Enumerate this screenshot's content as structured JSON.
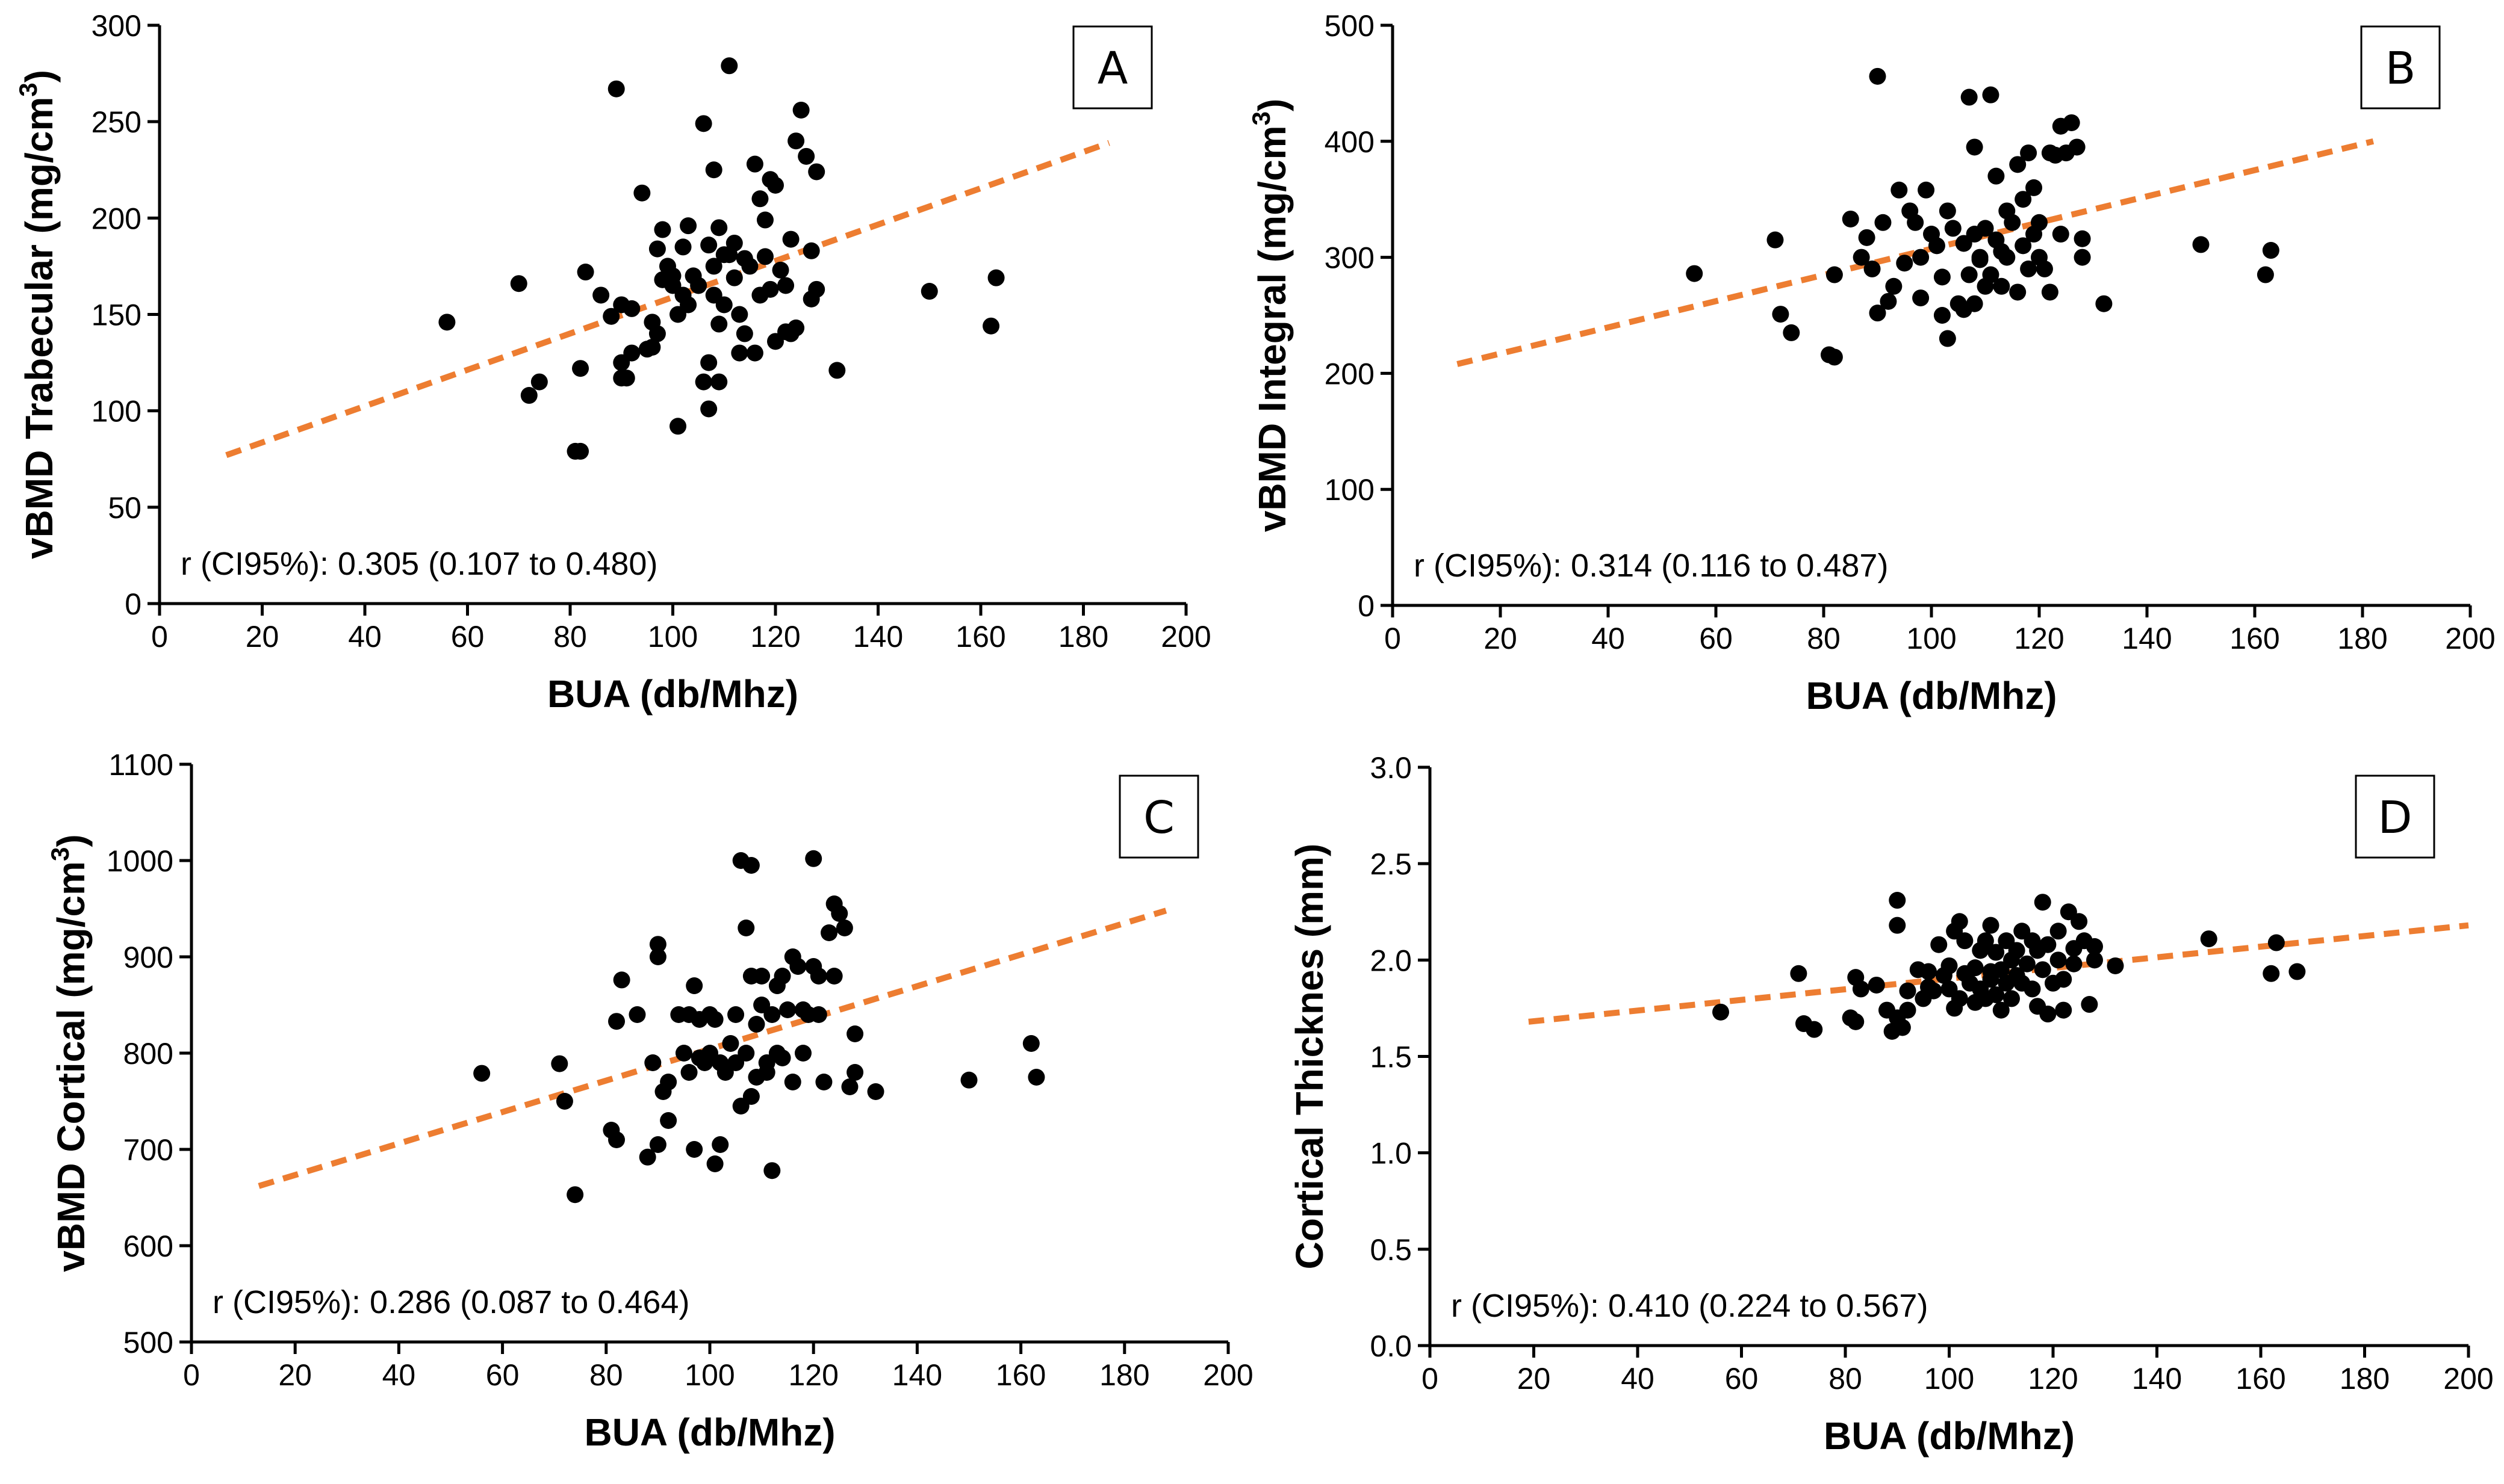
{
  "chart_data": [
    {
      "type": "scatter",
      "panel": "A",
      "xlabel": "BUA (db/Mhz)",
      "ylabel": "vBMD Trabecular (mg/cm",
      "ylabel_sup": "3",
      "ylabel_close": ")",
      "annotation": "r (CI95%): 0.305 (0.107 to 0.480)",
      "xlim": [
        0,
        200
      ],
      "ylim": [
        0,
        300
      ],
      "xticks": [
        "0",
        "20",
        "40",
        "60",
        "80",
        "100",
        "120",
        "140",
        "160",
        "180",
        "200"
      ],
      "yticks": [
        "0",
        "50",
        "100",
        "150",
        "200",
        "250",
        "300"
      ],
      "trendline": {
        "x": [
          13,
          185
        ],
        "y": [
          77,
          239
        ]
      },
      "x": [
        56,
        70,
        72,
        74,
        81,
        82,
        82,
        83,
        86,
        88,
        89,
        90,
        90,
        90,
        91,
        92,
        92,
        94,
        95,
        96,
        96,
        97,
        97,
        98,
        98,
        99,
        100,
        100,
        101,
        101,
        102,
        102,
        103,
        103,
        104,
        105,
        106,
        106,
        107,
        107,
        107,
        108,
        108,
        108,
        109,
        109,
        109,
        110,
        110,
        111,
        111,
        112,
        112,
        113,
        113,
        114,
        114,
        115,
        116,
        116,
        117,
        117,
        118,
        118,
        119,
        119,
        120,
        120,
        121,
        122,
        122,
        123,
        123,
        124,
        124,
        125,
        126,
        127,
        127,
        128,
        128,
        132,
        150,
        162,
        163
      ],
      "y": [
        146,
        166,
        108,
        115,
        79,
        79,
        122,
        172,
        160,
        149,
        267,
        117,
        155,
        125,
        117,
        130,
        153,
        213,
        132,
        146,
        133,
        140,
        184,
        168,
        194,
        175,
        170,
        165,
        92,
        150,
        185,
        160,
        155,
        196,
        170,
        165,
        115,
        249,
        186,
        101,
        125,
        225,
        175,
        160,
        115,
        195,
        145,
        155,
        181,
        181,
        279,
        169,
        187,
        150,
        130,
        179,
        140,
        175,
        130,
        228,
        160,
        210,
        180,
        199,
        220,
        163,
        136,
        217,
        173,
        165,
        141,
        140,
        189,
        143,
        240,
        256,
        232,
        158,
        183,
        163,
        224,
        121,
        162,
        144,
        169
      ]
    },
    {
      "type": "scatter",
      "panel": "B",
      "xlabel": "BUA (db/Mhz)",
      "ylabel": "vBMD Integral (mg/cm",
      "ylabel_sup": "3",
      "ylabel_close": ")",
      "annotation": "r (CI95%): 0.314 (0.116 to 0.487)",
      "xlim": [
        0,
        200
      ],
      "ylim": [
        0,
        500
      ],
      "xticks": [
        "0",
        "20",
        "40",
        "60",
        "80",
        "100",
        "120",
        "140",
        "160",
        "180",
        "200"
      ],
      "yticks": [
        "0",
        "100",
        "200",
        "300",
        "400",
        "500"
      ],
      "trendline": {
        "x": [
          12,
          182
        ],
        "y": [
          208,
          400
        ]
      },
      "x": [
        56,
        71,
        72,
        74,
        81,
        82,
        82,
        85,
        87,
        88,
        89,
        90,
        90,
        91,
        92,
        93,
        94,
        95,
        96,
        97,
        98,
        98,
        99,
        100,
        101,
        102,
        102,
        103,
        103,
        104,
        105,
        106,
        106,
        107,
        107,
        108,
        108,
        108,
        109,
        109,
        110,
        110,
        111,
        111,
        112,
        112,
        113,
        113,
        114,
        114,
        115,
        116,
        116,
        117,
        117,
        118,
        118,
        119,
        119,
        120,
        120,
        121,
        122,
        122,
        123,
        124,
        124,
        125,
        126,
        127,
        128,
        128,
        132,
        150,
        162,
        163
      ],
      "y": [
        286,
        315,
        251,
        235,
        216,
        214,
        285,
        333,
        300,
        317,
        290,
        252,
        456,
        330,
        262,
        275,
        358,
        295,
        340,
        330,
        300,
        265,
        358,
        320,
        310,
        283,
        250,
        340,
        230,
        325,
        260,
        312,
        255,
        438,
        285,
        395,
        320,
        260,
        298,
        300,
        325,
        275,
        285,
        440,
        370,
        315,
        275,
        305,
        340,
        300,
        330,
        270,
        380,
        310,
        350,
        290,
        390,
        320,
        360,
        300,
        330,
        290,
        270,
        390,
        388,
        320,
        413,
        390,
        416,
        395,
        300,
        316,
        260,
        311,
        285,
        306
      ]
    },
    {
      "type": "scatter",
      "panel": "C",
      "xlabel": "BUA (db/Mhz)",
      "ylabel": "vBMD Cortical (mg/cm",
      "ylabel_sup": "3",
      "ylabel_close": ")",
      "annotation": "r (CI95%): 0.286 (0.087 to 0.464)",
      "xlim": [
        0,
        200
      ],
      "ylim": [
        500,
        1100
      ],
      "xticks": [
        "0",
        "20",
        "40",
        "60",
        "80",
        "100",
        "120",
        "140",
        "160",
        "180",
        "200"
      ],
      "yticks": [
        "500",
        "600",
        "700",
        "800",
        "900",
        "1000",
        "1100"
      ],
      "trendline": {
        "x": [
          13,
          188
        ],
        "y": [
          662,
          948
        ]
      },
      "x": [
        56,
        71,
        72,
        74,
        81,
        82,
        82,
        83,
        86,
        88,
        89,
        90,
        90,
        90,
        91,
        92,
        92,
        94,
        95,
        96,
        96,
        97,
        97,
        98,
        98,
        99,
        100,
        100,
        101,
        101,
        102,
        102,
        103,
        104,
        105,
        105,
        106,
        106,
        107,
        107,
        108,
        108,
        108,
        109,
        109,
        110,
        110,
        111,
        111,
        112,
        112,
        113,
        113,
        114,
        114,
        115,
        116,
        116,
        117,
        118,
        118,
        119,
        120,
        120,
        121,
        121,
        122,
        123,
        124,
        124,
        125,
        126,
        127,
        128,
        128,
        132,
        150,
        162,
        163
      ],
      "y": [
        779,
        789,
        750,
        653,
        720,
        710,
        833,
        876,
        840,
        692,
        790,
        705,
        913,
        900,
        760,
        770,
        730,
        840,
        800,
        840,
        780,
        700,
        870,
        795,
        835,
        790,
        840,
        800,
        685,
        835,
        705,
        790,
        780,
        810,
        790,
        840,
        745,
        1000,
        930,
        800,
        755,
        995,
        880,
        775,
        830,
        850,
        880,
        780,
        790,
        678,
        840,
        800,
        870,
        880,
        795,
        845,
        770,
        900,
        890,
        800,
        845,
        840,
        1002,
        890,
        840,
        880,
        770,
        925,
        955,
        880,
        945,
        930,
        765,
        820,
        780,
        760,
        772,
        810,
        775
      ]
    },
    {
      "type": "scatter",
      "panel": "D",
      "xlabel": "BUA (db/Mhz)",
      "ylabel": "Cortical Thicknes (mm)",
      "annotation": "r (CI95%): 0.410 (0.224 to 0.567)",
      "xlim": [
        0,
        200
      ],
      "ylim": [
        0.0,
        3.0
      ],
      "xticks": [
        "0",
        "20",
        "40",
        "60",
        "80",
        "100",
        "120",
        "140",
        "160",
        "180",
        "200"
      ],
      "yticks": [
        "0.0",
        "0.5",
        "1.0",
        "1.5",
        "2.0",
        "2.5",
        "3.0"
      ],
      "trendline": {
        "x": [
          19,
          200
        ],
        "y": [
          1.68,
          2.18
        ]
      },
      "x": [
        56,
        71,
        72,
        74,
        81,
        82,
        82,
        83,
        86,
        88,
        89,
        90,
        90,
        90,
        91,
        92,
        92,
        94,
        95,
        96,
        96,
        97,
        98,
        99,
        100,
        100,
        101,
        101,
        102,
        102,
        103,
        103,
        104,
        105,
        105,
        106,
        106,
        107,
        107,
        108,
        108,
        108,
        109,
        109,
        110,
        110,
        111,
        111,
        112,
        112,
        113,
        113,
        114,
        114,
        115,
        116,
        116,
        117,
        117,
        118,
        118,
        119,
        119,
        120,
        121,
        121,
        122,
        122,
        123,
        124,
        124,
        125,
        126,
        127,
        128,
        128,
        132,
        150,
        162,
        163,
        167
      ],
      "y": [
        1.73,
        1.93,
        1.67,
        1.64,
        1.7,
        1.68,
        1.91,
        1.85,
        1.87,
        1.74,
        1.63,
        2.31,
        2.18,
        1.7,
        1.65,
        1.84,
        1.74,
        1.95,
        1.8,
        1.94,
        1.86,
        1.84,
        2.08,
        1.92,
        1.97,
        1.85,
        2.15,
        1.75,
        2.2,
        1.8,
        1.93,
        2.1,
        1.88,
        1.78,
        1.96,
        2.05,
        1.85,
        2.1,
        1.8,
        1.9,
        2.18,
        1.94,
        1.82,
        2.04,
        1.95,
        1.74,
        2.1,
        1.88,
        2.0,
        1.8,
        2.05,
        1.92,
        1.88,
        2.15,
        1.98,
        2.1,
        1.85,
        2.05,
        1.76,
        2.3,
        1.95,
        2.08,
        1.72,
        1.88,
        2.0,
        2.15,
        1.74,
        1.9,
        2.25,
        2.06,
        1.98,
        2.2,
        2.1,
        1.77,
        2.0,
        2.07,
        1.97,
        2.11,
        1.93,
        2.09,
        1.94
      ]
    }
  ]
}
